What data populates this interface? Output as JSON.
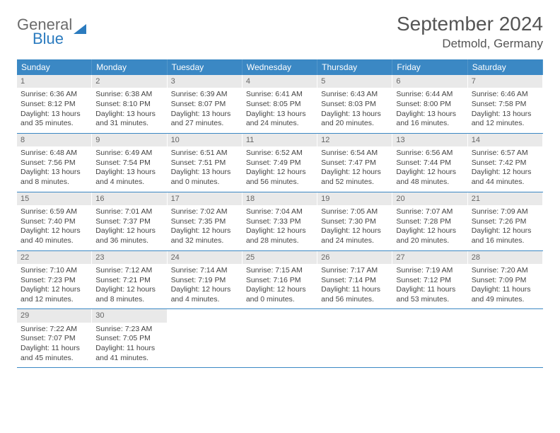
{
  "logo": {
    "word1": "General",
    "word2": "Blue"
  },
  "title": "September 2024",
  "location": "Detmold, Germany",
  "colors": {
    "header_bg": "#3b88c4",
    "header_text": "#ffffff",
    "date_bg": "#e9e9e9",
    "date_text": "#666666",
    "body_text": "#444444",
    "rule": "#3b88c4",
    "title_text": "#555555",
    "logo_gray": "#6b6b6b",
    "logo_blue": "#2b7bbf"
  },
  "dayNames": [
    "Sunday",
    "Monday",
    "Tuesday",
    "Wednesday",
    "Thursday",
    "Friday",
    "Saturday"
  ],
  "weeks": [
    [
      {
        "n": "1",
        "sr": "Sunrise: 6:36 AM",
        "ss": "Sunset: 8:12 PM",
        "d1": "Daylight: 13 hours",
        "d2": "and 35 minutes."
      },
      {
        "n": "2",
        "sr": "Sunrise: 6:38 AM",
        "ss": "Sunset: 8:10 PM",
        "d1": "Daylight: 13 hours",
        "d2": "and 31 minutes."
      },
      {
        "n": "3",
        "sr": "Sunrise: 6:39 AM",
        "ss": "Sunset: 8:07 PM",
        "d1": "Daylight: 13 hours",
        "d2": "and 27 minutes."
      },
      {
        "n": "4",
        "sr": "Sunrise: 6:41 AM",
        "ss": "Sunset: 8:05 PM",
        "d1": "Daylight: 13 hours",
        "d2": "and 24 minutes."
      },
      {
        "n": "5",
        "sr": "Sunrise: 6:43 AM",
        "ss": "Sunset: 8:03 PM",
        "d1": "Daylight: 13 hours",
        "d2": "and 20 minutes."
      },
      {
        "n": "6",
        "sr": "Sunrise: 6:44 AM",
        "ss": "Sunset: 8:00 PM",
        "d1": "Daylight: 13 hours",
        "d2": "and 16 minutes."
      },
      {
        "n": "7",
        "sr": "Sunrise: 6:46 AM",
        "ss": "Sunset: 7:58 PM",
        "d1": "Daylight: 13 hours",
        "d2": "and 12 minutes."
      }
    ],
    [
      {
        "n": "8",
        "sr": "Sunrise: 6:48 AM",
        "ss": "Sunset: 7:56 PM",
        "d1": "Daylight: 13 hours",
        "d2": "and 8 minutes."
      },
      {
        "n": "9",
        "sr": "Sunrise: 6:49 AM",
        "ss": "Sunset: 7:54 PM",
        "d1": "Daylight: 13 hours",
        "d2": "and 4 minutes."
      },
      {
        "n": "10",
        "sr": "Sunrise: 6:51 AM",
        "ss": "Sunset: 7:51 PM",
        "d1": "Daylight: 13 hours",
        "d2": "and 0 minutes."
      },
      {
        "n": "11",
        "sr": "Sunrise: 6:52 AM",
        "ss": "Sunset: 7:49 PM",
        "d1": "Daylight: 12 hours",
        "d2": "and 56 minutes."
      },
      {
        "n": "12",
        "sr": "Sunrise: 6:54 AM",
        "ss": "Sunset: 7:47 PM",
        "d1": "Daylight: 12 hours",
        "d2": "and 52 minutes."
      },
      {
        "n": "13",
        "sr": "Sunrise: 6:56 AM",
        "ss": "Sunset: 7:44 PM",
        "d1": "Daylight: 12 hours",
        "d2": "and 48 minutes."
      },
      {
        "n": "14",
        "sr": "Sunrise: 6:57 AM",
        "ss": "Sunset: 7:42 PM",
        "d1": "Daylight: 12 hours",
        "d2": "and 44 minutes."
      }
    ],
    [
      {
        "n": "15",
        "sr": "Sunrise: 6:59 AM",
        "ss": "Sunset: 7:40 PM",
        "d1": "Daylight: 12 hours",
        "d2": "and 40 minutes."
      },
      {
        "n": "16",
        "sr": "Sunrise: 7:01 AM",
        "ss": "Sunset: 7:37 PM",
        "d1": "Daylight: 12 hours",
        "d2": "and 36 minutes."
      },
      {
        "n": "17",
        "sr": "Sunrise: 7:02 AM",
        "ss": "Sunset: 7:35 PM",
        "d1": "Daylight: 12 hours",
        "d2": "and 32 minutes."
      },
      {
        "n": "18",
        "sr": "Sunrise: 7:04 AM",
        "ss": "Sunset: 7:33 PM",
        "d1": "Daylight: 12 hours",
        "d2": "and 28 minutes."
      },
      {
        "n": "19",
        "sr": "Sunrise: 7:05 AM",
        "ss": "Sunset: 7:30 PM",
        "d1": "Daylight: 12 hours",
        "d2": "and 24 minutes."
      },
      {
        "n": "20",
        "sr": "Sunrise: 7:07 AM",
        "ss": "Sunset: 7:28 PM",
        "d1": "Daylight: 12 hours",
        "d2": "and 20 minutes."
      },
      {
        "n": "21",
        "sr": "Sunrise: 7:09 AM",
        "ss": "Sunset: 7:26 PM",
        "d1": "Daylight: 12 hours",
        "d2": "and 16 minutes."
      }
    ],
    [
      {
        "n": "22",
        "sr": "Sunrise: 7:10 AM",
        "ss": "Sunset: 7:23 PM",
        "d1": "Daylight: 12 hours",
        "d2": "and 12 minutes."
      },
      {
        "n": "23",
        "sr": "Sunrise: 7:12 AM",
        "ss": "Sunset: 7:21 PM",
        "d1": "Daylight: 12 hours",
        "d2": "and 8 minutes."
      },
      {
        "n": "24",
        "sr": "Sunrise: 7:14 AM",
        "ss": "Sunset: 7:19 PM",
        "d1": "Daylight: 12 hours",
        "d2": "and 4 minutes."
      },
      {
        "n": "25",
        "sr": "Sunrise: 7:15 AM",
        "ss": "Sunset: 7:16 PM",
        "d1": "Daylight: 12 hours",
        "d2": "and 0 minutes."
      },
      {
        "n": "26",
        "sr": "Sunrise: 7:17 AM",
        "ss": "Sunset: 7:14 PM",
        "d1": "Daylight: 11 hours",
        "d2": "and 56 minutes."
      },
      {
        "n": "27",
        "sr": "Sunrise: 7:19 AM",
        "ss": "Sunset: 7:12 PM",
        "d1": "Daylight: 11 hours",
        "d2": "and 53 minutes."
      },
      {
        "n": "28",
        "sr": "Sunrise: 7:20 AM",
        "ss": "Sunset: 7:09 PM",
        "d1": "Daylight: 11 hours",
        "d2": "and 49 minutes."
      }
    ],
    [
      {
        "n": "29",
        "sr": "Sunrise: 7:22 AM",
        "ss": "Sunset: 7:07 PM",
        "d1": "Daylight: 11 hours",
        "d2": "and 45 minutes."
      },
      {
        "n": "30",
        "sr": "Sunrise: 7:23 AM",
        "ss": "Sunset: 7:05 PM",
        "d1": "Daylight: 11 hours",
        "d2": "and 41 minutes."
      },
      {
        "empty": true
      },
      {
        "empty": true
      },
      {
        "empty": true
      },
      {
        "empty": true
      },
      {
        "empty": true
      }
    ]
  ]
}
